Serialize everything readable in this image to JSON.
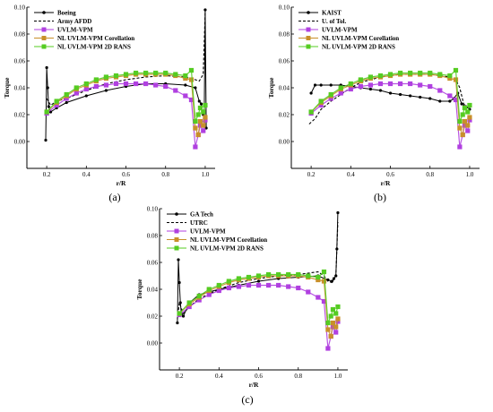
{
  "colors": {
    "black": "#000000",
    "uvlm": "#b040e0",
    "corr": "#c8902a",
    "rans": "#55cc22"
  },
  "chart_data": [
    {
      "type": "line",
      "caption": "(a)",
      "xlabel": "r/R",
      "ylabel": "Torque",
      "xlim": [
        0.1,
        1.05
      ],
      "ylim": [
        -0.02,
        0.1
      ],
      "xticks": [
        "0.2",
        "0.4",
        "0.6",
        "0.8",
        "1.0"
      ],
      "yticks": [
        "0.00",
        "0.02",
        "0.04",
        "0.06",
        "0.08",
        "0.10"
      ],
      "legend_position": "top-left",
      "series": [
        {
          "name": "Boeing",
          "style": "solid-dot",
          "color": "#000000",
          "x": [
            0.195,
            0.2,
            0.205,
            0.21,
            0.22,
            0.25,
            0.3,
            0.4,
            0.5,
            0.6,
            0.7,
            0.8,
            0.9,
            0.95,
            0.97,
            0.98,
            0.99,
            0.995,
            1.0,
            1.005
          ],
          "y": [
            0.001,
            0.055,
            0.04,
            0.026,
            0.022,
            0.025,
            0.029,
            0.034,
            0.038,
            0.041,
            0.043,
            0.043,
            0.042,
            0.04,
            0.03,
            0.028,
            0.02,
            0.015,
            0.098,
            0.01
          ]
        },
        {
          "name": "Army AFDD",
          "style": "dash",
          "color": "#000000",
          "x": [
            0.2,
            0.22,
            0.25,
            0.3,
            0.4,
            0.5,
            0.6,
            0.7,
            0.8,
            0.9,
            0.95,
            0.97,
            0.99,
            1.0
          ],
          "y": [
            0.032,
            0.027,
            0.03,
            0.032,
            0.038,
            0.043,
            0.046,
            0.048,
            0.049,
            0.048,
            0.046,
            0.045,
            0.05,
            0.096
          ]
        },
        {
          "name": "UVLM-VPM",
          "style": "square",
          "color": "#b040e0",
          "x": [
            0.2,
            0.25,
            0.3,
            0.35,
            0.4,
            0.45,
            0.5,
            0.55,
            0.6,
            0.65,
            0.7,
            0.75,
            0.8,
            0.85,
            0.9,
            0.93,
            0.95,
            0.965,
            0.975,
            0.99,
            1.0
          ],
          "y": [
            0.021,
            0.027,
            0.032,
            0.036,
            0.039,
            0.041,
            0.042,
            0.043,
            0.043,
            0.043,
            0.043,
            0.042,
            0.041,
            0.038,
            0.034,
            0.031,
            -0.004,
            0.005,
            0.012,
            0.008,
            0.016
          ]
        },
        {
          "name": "NL UVLM-VPM Corellation",
          "style": "square",
          "color": "#c8902a",
          "x": [
            0.2,
            0.25,
            0.3,
            0.35,
            0.4,
            0.45,
            0.5,
            0.55,
            0.6,
            0.65,
            0.7,
            0.75,
            0.8,
            0.85,
            0.9,
            0.93,
            0.95,
            0.965,
            0.975,
            0.99,
            1.0
          ],
          "y": [
            0.022,
            0.029,
            0.034,
            0.039,
            0.042,
            0.045,
            0.047,
            0.048,
            0.049,
            0.05,
            0.05,
            0.05,
            0.05,
            0.049,
            0.047,
            0.046,
            0.01,
            0.005,
            0.015,
            0.012,
            0.018
          ]
        },
        {
          "name": "NL UVLM-VPM 2D RANS",
          "style": "square",
          "color": "#55cc22",
          "x": [
            0.2,
            0.25,
            0.3,
            0.35,
            0.4,
            0.45,
            0.5,
            0.55,
            0.6,
            0.65,
            0.7,
            0.75,
            0.8,
            0.85,
            0.9,
            0.93,
            0.95,
            0.965,
            0.975,
            0.99,
            1.0
          ],
          "y": [
            0.022,
            0.03,
            0.035,
            0.04,
            0.043,
            0.046,
            0.048,
            0.049,
            0.05,
            0.051,
            0.051,
            0.051,
            0.051,
            0.05,
            0.049,
            0.053,
            0.015,
            0.02,
            0.025,
            0.022,
            0.027
          ]
        }
      ]
    },
    {
      "type": "line",
      "caption": "(b)",
      "xlabel": "r/R",
      "ylabel": "Torque",
      "xlim": [
        0.1,
        1.05
      ],
      "ylim": [
        -0.02,
        0.1
      ],
      "xticks": [
        "0.2",
        "0.4",
        "0.6",
        "0.8",
        "1.0"
      ],
      "yticks": [
        "0.00",
        "0.02",
        "0.04",
        "0.06",
        "0.08",
        "0.10"
      ],
      "legend_position": "top-left",
      "series": [
        {
          "name": "KAIST",
          "style": "solid-dot",
          "color": "#000000",
          "x": [
            0.2,
            0.22,
            0.25,
            0.3,
            0.35,
            0.4,
            0.45,
            0.5,
            0.55,
            0.6,
            0.65,
            0.7,
            0.75,
            0.8,
            0.85,
            0.9,
            0.92,
            0.94,
            0.96,
            0.98,
            1.0
          ],
          "y": [
            0.036,
            0.042,
            0.042,
            0.042,
            0.042,
            0.041,
            0.04,
            0.039,
            0.038,
            0.036,
            0.035,
            0.034,
            0.033,
            0.032,
            0.03,
            0.03,
            0.032,
            0.036,
            0.028,
            0.026,
            0.024
          ]
        },
        {
          "name": "U. of Tol.",
          "style": "dash",
          "color": "#000000",
          "x": [
            0.19,
            0.22,
            0.25,
            0.3,
            0.35,
            0.4,
            0.45,
            0.5,
            0.55,
            0.6,
            0.65,
            0.7,
            0.75,
            0.8,
            0.85,
            0.9,
            0.93,
            0.95,
            0.97,
            1.0
          ],
          "y": [
            0.013,
            0.017,
            0.024,
            0.03,
            0.035,
            0.04,
            0.044,
            0.046,
            0.048,
            0.049,
            0.05,
            0.05,
            0.05,
            0.05,
            0.049,
            0.048,
            0.046,
            0.04,
            0.028,
            0.024
          ]
        },
        {
          "name": "UVLM-VPM",
          "style": "square",
          "color": "#b040e0",
          "x": [
            0.2,
            0.25,
            0.3,
            0.35,
            0.4,
            0.45,
            0.5,
            0.55,
            0.6,
            0.65,
            0.7,
            0.75,
            0.8,
            0.85,
            0.9,
            0.93,
            0.95,
            0.965,
            0.975,
            0.99,
            1.0
          ],
          "y": [
            0.021,
            0.027,
            0.032,
            0.036,
            0.039,
            0.041,
            0.042,
            0.043,
            0.043,
            0.043,
            0.043,
            0.042,
            0.041,
            0.038,
            0.034,
            0.031,
            -0.004,
            0.005,
            0.012,
            0.008,
            0.016
          ]
        },
        {
          "name": "NL UVLM-VPM Corellation",
          "style": "square",
          "color": "#c8902a",
          "x": [
            0.2,
            0.25,
            0.3,
            0.35,
            0.4,
            0.45,
            0.5,
            0.55,
            0.6,
            0.65,
            0.7,
            0.75,
            0.8,
            0.85,
            0.9,
            0.93,
            0.95,
            0.965,
            0.975,
            0.99,
            1.0
          ],
          "y": [
            0.022,
            0.029,
            0.034,
            0.039,
            0.042,
            0.045,
            0.047,
            0.048,
            0.049,
            0.05,
            0.05,
            0.05,
            0.05,
            0.049,
            0.047,
            0.046,
            0.01,
            0.005,
            0.015,
            0.012,
            0.018
          ]
        },
        {
          "name": "NL UVLM-VPM 2D RANS",
          "style": "square",
          "color": "#55cc22",
          "x": [
            0.2,
            0.25,
            0.3,
            0.35,
            0.4,
            0.45,
            0.5,
            0.55,
            0.6,
            0.65,
            0.7,
            0.75,
            0.8,
            0.85,
            0.9,
            0.93,
            0.95,
            0.965,
            0.975,
            0.99,
            1.0
          ],
          "y": [
            0.022,
            0.03,
            0.035,
            0.04,
            0.043,
            0.046,
            0.048,
            0.049,
            0.05,
            0.051,
            0.051,
            0.051,
            0.051,
            0.05,
            0.049,
            0.053,
            0.015,
            0.02,
            0.025,
            0.022,
            0.027
          ]
        }
      ]
    },
    {
      "type": "line",
      "caption": "(c)",
      "xlabel": "r/R",
      "ylabel": "Torque",
      "xlim": [
        0.1,
        1.05
      ],
      "ylim": [
        -0.02,
        0.1
      ],
      "xticks": [
        "0.2",
        "0.4",
        "0.6",
        "0.8",
        "1.0"
      ],
      "yticks": [
        "0.00",
        "0.02",
        "0.04",
        "0.06",
        "0.08",
        "0.10"
      ],
      "legend_position": "top-left",
      "series": [
        {
          "name": "GA Tech",
          "style": "solid-dot",
          "color": "#000000",
          "x": [
            0.19,
            0.195,
            0.2,
            0.205,
            0.21,
            0.22,
            0.25,
            0.3,
            0.4,
            0.5,
            0.6,
            0.7,
            0.8,
            0.9,
            0.95,
            0.97,
            0.98,
            0.99,
            0.995,
            1.0
          ],
          "y": [
            0.015,
            0.062,
            0.045,
            0.03,
            0.022,
            0.02,
            0.03,
            0.036,
            0.04,
            0.043,
            0.046,
            0.048,
            0.049,
            0.05,
            0.047,
            0.046,
            0.048,
            0.05,
            0.07,
            0.097
          ]
        },
        {
          "name": "UTRC",
          "style": "dash",
          "color": "#000000",
          "x": [
            0.19,
            0.2,
            0.22,
            0.25,
            0.3,
            0.4,
            0.5,
            0.6,
            0.7,
            0.8,
            0.9,
            0.93,
            0.95,
            0.97,
            0.99,
            1.0
          ],
          "y": [
            0.018,
            0.03,
            0.022,
            0.027,
            0.033,
            0.04,
            0.045,
            0.048,
            0.05,
            0.051,
            0.053,
            0.05,
            0.046,
            0.045,
            0.05,
            0.09
          ]
        },
        {
          "name": "UVLM-VPM",
          "style": "square",
          "color": "#b040e0",
          "x": [
            0.2,
            0.25,
            0.3,
            0.35,
            0.4,
            0.45,
            0.5,
            0.55,
            0.6,
            0.65,
            0.7,
            0.75,
            0.8,
            0.85,
            0.9,
            0.93,
            0.95,
            0.965,
            0.975,
            0.99,
            1.0
          ],
          "y": [
            0.021,
            0.027,
            0.032,
            0.036,
            0.039,
            0.041,
            0.042,
            0.043,
            0.043,
            0.043,
            0.043,
            0.042,
            0.041,
            0.038,
            0.034,
            0.031,
            -0.004,
            0.005,
            0.012,
            0.008,
            0.016
          ]
        },
        {
          "name": "NL UVLM-VPM Corellation",
          "style": "square",
          "color": "#c8902a",
          "x": [
            0.2,
            0.25,
            0.3,
            0.35,
            0.4,
            0.45,
            0.5,
            0.55,
            0.6,
            0.65,
            0.7,
            0.75,
            0.8,
            0.85,
            0.9,
            0.93,
            0.95,
            0.965,
            0.975,
            0.99,
            1.0
          ],
          "y": [
            0.022,
            0.029,
            0.034,
            0.039,
            0.042,
            0.045,
            0.047,
            0.048,
            0.049,
            0.05,
            0.05,
            0.05,
            0.05,
            0.049,
            0.047,
            0.046,
            0.01,
            0.005,
            0.015,
            0.012,
            0.018
          ]
        },
        {
          "name": "NL UVLM-VPM 2D RANS",
          "style": "square",
          "color": "#55cc22",
          "x": [
            0.2,
            0.25,
            0.3,
            0.35,
            0.4,
            0.45,
            0.5,
            0.55,
            0.6,
            0.65,
            0.7,
            0.75,
            0.8,
            0.85,
            0.9,
            0.93,
            0.95,
            0.965,
            0.975,
            0.99,
            1.0
          ],
          "y": [
            0.022,
            0.03,
            0.035,
            0.04,
            0.043,
            0.046,
            0.048,
            0.049,
            0.05,
            0.051,
            0.051,
            0.051,
            0.051,
            0.05,
            0.049,
            0.053,
            0.015,
            0.02,
            0.025,
            0.022,
            0.027
          ]
        }
      ]
    }
  ]
}
